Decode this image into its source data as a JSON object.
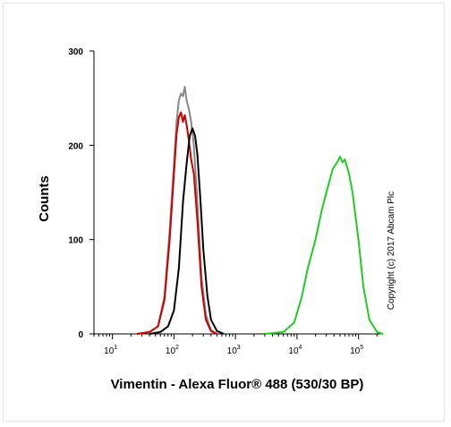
{
  "chart_data": {
    "type": "line",
    "xlabel": "Vimentin - Alexa Fluor® 488 (530/30 BP)",
    "ylabel": "Counts",
    "xscale": "log",
    "xlim": [
      5,
      250000
    ],
    "ylim": [
      0,
      300
    ],
    "yticks": [
      0,
      100,
      200,
      300
    ],
    "xticks": [
      {
        "value": 10,
        "base": "10",
        "exp": "1"
      },
      {
        "value": 100,
        "base": "10",
        "exp": "2"
      },
      {
        "value": 1000,
        "base": "10",
        "exp": "3"
      },
      {
        "value": 10000,
        "base": "10",
        "exp": "4"
      },
      {
        "value": 100000,
        "base": "10",
        "exp": "5"
      }
    ],
    "grid": false,
    "copyright": "Copyright (c) 2017 Abcam Plc",
    "series": [
      {
        "color": "#888888",
        "points": [
          [
            25,
            0
          ],
          [
            40,
            2
          ],
          [
            55,
            8
          ],
          [
            70,
            40
          ],
          [
            85,
            110
          ],
          [
            100,
            180
          ],
          [
            110,
            225
          ],
          [
            120,
            248
          ],
          [
            130,
            255
          ],
          [
            140,
            252
          ],
          [
            150,
            262
          ],
          [
            160,
            248
          ],
          [
            175,
            238
          ],
          [
            190,
            225
          ],
          [
            210,
            200
          ],
          [
            240,
            140
          ],
          [
            280,
            60
          ],
          [
            330,
            20
          ],
          [
            400,
            4
          ],
          [
            500,
            0
          ]
        ]
      },
      {
        "color": "#cc0000",
        "points": [
          [
            25,
            0
          ],
          [
            40,
            2
          ],
          [
            55,
            8
          ],
          [
            70,
            36
          ],
          [
            85,
            100
          ],
          [
            100,
            170
          ],
          [
            110,
            212
          ],
          [
            120,
            230
          ],
          [
            130,
            235
          ],
          [
            140,
            225
          ],
          [
            150,
            232
          ],
          [
            160,
            222
          ],
          [
            175,
            205
          ],
          [
            190,
            185
          ],
          [
            210,
            170
          ],
          [
            240,
            120
          ],
          [
            280,
            50
          ],
          [
            330,
            15
          ],
          [
            400,
            3
          ],
          [
            500,
            0
          ]
        ]
      },
      {
        "color": "#000000",
        "points": [
          [
            40,
            0
          ],
          [
            60,
            2
          ],
          [
            80,
            8
          ],
          [
            100,
            25
          ],
          [
            120,
            70
          ],
          [
            140,
            140
          ],
          [
            160,
            180
          ],
          [
            180,
            210
          ],
          [
            200,
            218
          ],
          [
            220,
            210
          ],
          [
            240,
            190
          ],
          [
            270,
            140
          ],
          [
            300,
            90
          ],
          [
            350,
            40
          ],
          [
            400,
            15
          ],
          [
            500,
            3
          ],
          [
            650,
            0
          ]
        ]
      },
      {
        "color": "#22cc22",
        "points": [
          [
            3000,
            0
          ],
          [
            6000,
            2
          ],
          [
            9000,
            12
          ],
          [
            12000,
            40
          ],
          [
            15000,
            70
          ],
          [
            20000,
            100
          ],
          [
            25000,
            130
          ],
          [
            30000,
            150
          ],
          [
            38000,
            175
          ],
          [
            45000,
            182
          ],
          [
            50000,
            188
          ],
          [
            55000,
            182
          ],
          [
            60000,
            185
          ],
          [
            70000,
            170
          ],
          [
            80000,
            150
          ],
          [
            100000,
            100
          ],
          [
            120000,
            50
          ],
          [
            150000,
            15
          ],
          [
            200000,
            2
          ],
          [
            250000,
            0
          ]
        ]
      }
    ]
  }
}
